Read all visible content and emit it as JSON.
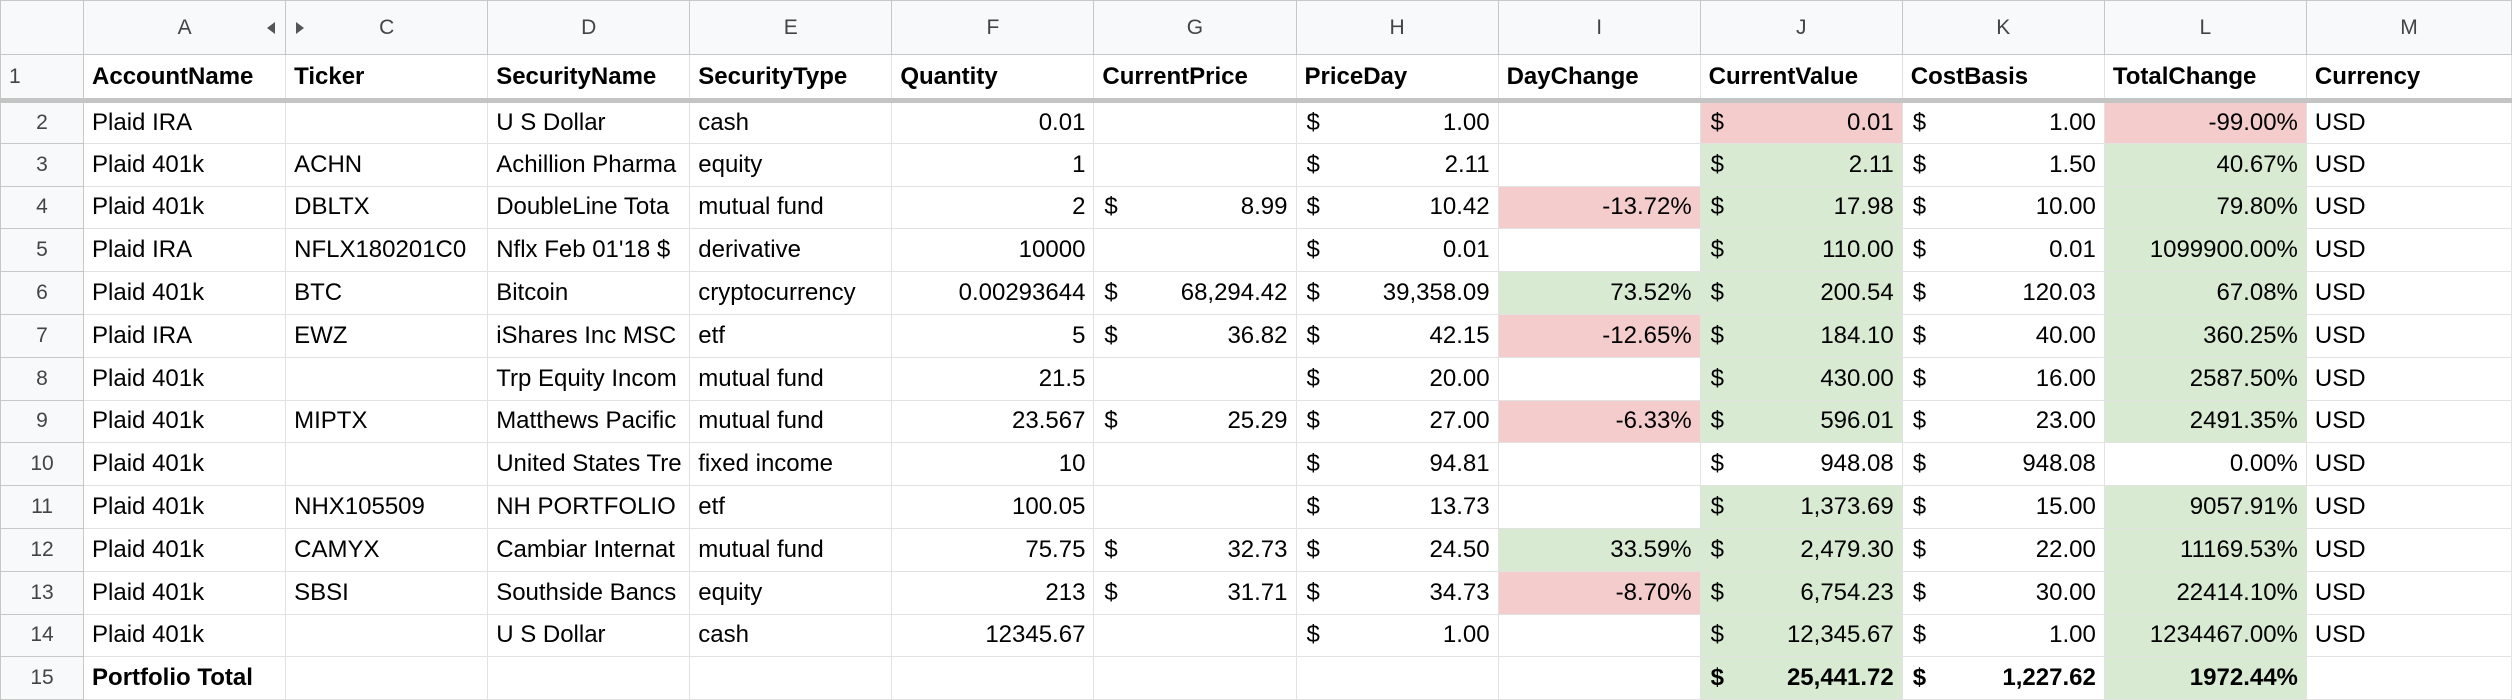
{
  "columns": [
    "A",
    "C",
    "D",
    "E",
    "F",
    "G",
    "H",
    "I",
    "J",
    "K",
    "L",
    "M"
  ],
  "row_numbers": [
    "1",
    "2",
    "3",
    "4",
    "5",
    "6",
    "7",
    "8",
    "9",
    "10",
    "11",
    "12",
    "13",
    "14",
    "15"
  ],
  "rows": [
    [
      "AccountName",
      "Ticker",
      "SecurityName",
      "SecurityType",
      "Quantity",
      "CurrentPrice",
      "PriceDay",
      "DayChange",
      "CurrentValue",
      "CostBasis",
      "TotalChange",
      "Currency"
    ],
    [
      "Plaid IRA",
      null,
      "U S Dollar",
      "cash",
      "0.01",
      null,
      {
        "symbol": "$",
        "text": "1.00"
      },
      null,
      {
        "symbol": "$",
        "text": "0.01",
        "bg": "#f4cccc"
      },
      {
        "symbol": "$",
        "text": "1.00"
      },
      {
        "text": "-99.00%",
        "bg": "#f4cccc"
      },
      "USD"
    ],
    [
      "Plaid 401k",
      "ACHN",
      "Achillion Pharma",
      "equity",
      "1",
      null,
      {
        "symbol": "$",
        "text": "2.11"
      },
      null,
      {
        "symbol": "$",
        "text": "2.11",
        "bg": "#d9ead3"
      },
      {
        "symbol": "$",
        "text": "1.50"
      },
      {
        "text": "40.67%",
        "bg": "#d9ead3"
      },
      "USD"
    ],
    [
      "Plaid 401k",
      "DBLTX",
      "DoubleLine Tota",
      "mutual fund",
      "2",
      {
        "symbol": "$",
        "text": "8.99"
      },
      {
        "symbol": "$",
        "text": "10.42"
      },
      {
        "text": "-13.72%",
        "bg": "#f4cccc"
      },
      {
        "symbol": "$",
        "text": "17.98",
        "bg": "#d9ead3"
      },
      {
        "symbol": "$",
        "text": "10.00"
      },
      {
        "text": "79.80%",
        "bg": "#d9ead3"
      },
      "USD"
    ],
    [
      "Plaid IRA",
      "NFLX180201C0",
      "Nflx Feb 01'18 $",
      "derivative",
      "10000",
      null,
      {
        "symbol": "$",
        "text": "0.01"
      },
      null,
      {
        "symbol": "$",
        "text": "110.00",
        "bg": "#d9ead3"
      },
      {
        "symbol": "$",
        "text": "0.01"
      },
      {
        "text": "1099900.00%",
        "bg": "#d9ead3"
      },
      "USD"
    ],
    [
      "Plaid 401k",
      "BTC",
      "Bitcoin",
      "cryptocurrency",
      "0.00293644",
      {
        "symbol": "$",
        "text": "68,294.42"
      },
      {
        "symbol": "$",
        "text": "39,358.09"
      },
      {
        "text": "73.52%",
        "bg": "#d9ead3"
      },
      {
        "symbol": "$",
        "text": "200.54",
        "bg": "#d9ead3"
      },
      {
        "symbol": "$",
        "text": "120.03"
      },
      {
        "text": "67.08%",
        "bg": "#d9ead3"
      },
      "USD"
    ],
    [
      "Plaid IRA",
      "EWZ",
      "iShares Inc MSC",
      "etf",
      "5",
      {
        "symbol": "$",
        "text": "36.82"
      },
      {
        "symbol": "$",
        "text": "42.15"
      },
      {
        "text": "-12.65%",
        "bg": "#f4cccc"
      },
      {
        "symbol": "$",
        "text": "184.10",
        "bg": "#d9ead3"
      },
      {
        "symbol": "$",
        "text": "40.00"
      },
      {
        "text": "360.25%",
        "bg": "#d9ead3"
      },
      "USD"
    ],
    [
      "Plaid 401k",
      null,
      "Trp Equity Incom",
      "mutual fund",
      "21.5",
      null,
      {
        "symbol": "$",
        "text": "20.00"
      },
      null,
      {
        "symbol": "$",
        "text": "430.00",
        "bg": "#d9ead3"
      },
      {
        "symbol": "$",
        "text": "16.00"
      },
      {
        "text": "2587.50%",
        "bg": "#d9ead3"
      },
      "USD"
    ],
    [
      "Plaid 401k",
      "MIPTX",
      "Matthews Pacific",
      "mutual fund",
      "23.567",
      {
        "symbol": "$",
        "text": "25.29"
      },
      {
        "symbol": "$",
        "text": "27.00"
      },
      {
        "text": "-6.33%",
        "bg": "#f4cccc"
      },
      {
        "symbol": "$",
        "text": "596.01",
        "bg": "#d9ead3"
      },
      {
        "symbol": "$",
        "text": "23.00"
      },
      {
        "text": "2491.35%",
        "bg": "#d9ead3"
      },
      "USD"
    ],
    [
      "Plaid 401k",
      null,
      "United States Tre",
      "fixed income",
      "10",
      null,
      {
        "symbol": "$",
        "text": "94.81"
      },
      null,
      {
        "symbol": "$",
        "text": "948.08"
      },
      {
        "symbol": "$",
        "text": "948.08"
      },
      {
        "text": "0.00%"
      },
      "USD"
    ],
    [
      "Plaid 401k",
      "NHX105509",
      "NH PORTFOLIO",
      "etf",
      "100.05",
      null,
      {
        "symbol": "$",
        "text": "13.73"
      },
      null,
      {
        "symbol": "$",
        "text": "1,373.69",
        "bg": "#d9ead3"
      },
      {
        "symbol": "$",
        "text": "15.00"
      },
      {
        "text": "9057.91%",
        "bg": "#d9ead3"
      },
      "USD"
    ],
    [
      "Plaid 401k",
      "CAMYX",
      "Cambiar Internat",
      "mutual fund",
      "75.75",
      {
        "symbol": "$",
        "text": "32.73"
      },
      {
        "symbol": "$",
        "text": "24.50"
      },
      {
        "text": "33.59%",
        "bg": "#d9ead3"
      },
      {
        "symbol": "$",
        "text": "2,479.30",
        "bg": "#d9ead3"
      },
      {
        "symbol": "$",
        "text": "22.00"
      },
      {
        "text": "11169.53%",
        "bg": "#d9ead3"
      },
      "USD"
    ],
    [
      "Plaid 401k",
      "SBSI",
      "Southside Bancs",
      "equity",
      "213",
      {
        "symbol": "$",
        "text": "31.71"
      },
      {
        "symbol": "$",
        "text": "34.73"
      },
      {
        "text": "-8.70%",
        "bg": "#f4cccc"
      },
      {
        "symbol": "$",
        "text": "6,754.23",
        "bg": "#d9ead3"
      },
      {
        "symbol": "$",
        "text": "30.00"
      },
      {
        "text": "22414.10%",
        "bg": "#d9ead3"
      },
      "USD"
    ],
    [
      "Plaid 401k",
      null,
      "U S Dollar",
      "cash",
      "12345.67",
      null,
      {
        "symbol": "$",
        "text": "1.00"
      },
      null,
      {
        "symbol": "$",
        "text": "12,345.67",
        "bg": "#d9ead3"
      },
      {
        "symbol": "$",
        "text": "1.00"
      },
      {
        "text": "1234467.00%",
        "bg": "#d9ead3"
      },
      "USD"
    ],
    [
      "Portfolio Total",
      null,
      null,
      null,
      null,
      null,
      null,
      null,
      {
        "symbol": "$",
        "text": "25,441.72",
        "bg": "#d9ead3"
      },
      {
        "symbol": "$",
        "text": "1,227.62"
      },
      {
        "text": "1972.44%",
        "bg": "#d9ead3"
      },
      null
    ]
  ]
}
